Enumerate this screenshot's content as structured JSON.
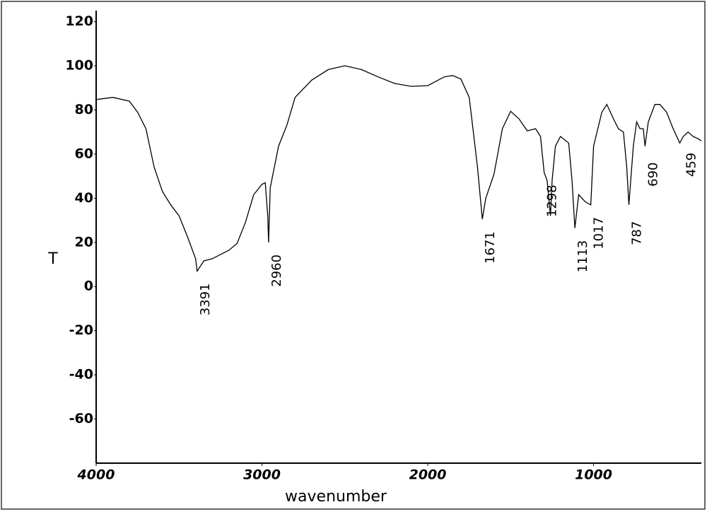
{
  "chart_data": {
    "type": "line",
    "x_label": "wavenumber",
    "y_label": "T",
    "xlim": [
      4000,
      350
    ],
    "ylim": [
      -80,
      125
    ],
    "xticks": [
      4000,
      3000,
      2000,
      1000
    ],
    "yticks": [
      120,
      100,
      80,
      60,
      40,
      20,
      0,
      -20,
      -40,
      -60
    ],
    "series": [
      {
        "color": "#000000",
        "x": [
          4000,
          3900,
          3800,
          3750,
          3700,
          3650,
          3600,
          3550,
          3500,
          3450,
          3400,
          3391,
          3350,
          3300,
          3200,
          3150,
          3100,
          3050,
          3000,
          2980,
          2965,
          2960,
          2950,
          2900,
          2850,
          2800,
          2700,
          2600,
          2500,
          2400,
          2300,
          2200,
          2100,
          2000,
          1900,
          1850,
          1800,
          1750,
          1700,
          1671,
          1650,
          1600,
          1550,
          1500,
          1450,
          1400,
          1350,
          1320,
          1298,
          1280,
          1260,
          1250,
          1230,
          1200,
          1150,
          1130,
          1113,
          1090,
          1050,
          1017,
          1000,
          950,
          920,
          880,
          850,
          820,
          800,
          787,
          760,
          740,
          720,
          700,
          690,
          670,
          630,
          600,
          560,
          520,
          480,
          459,
          430,
          400,
          370,
          350
        ],
        "values": [
          84.7,
          85.7,
          84,
          79,
          71.5,
          54,
          43,
          37,
          32,
          22.7,
          12.6,
          7,
          11.6,
          12.6,
          16.4,
          19.5,
          29,
          41.6,
          46.3,
          47,
          32,
          20,
          44.7,
          63.6,
          73,
          85.7,
          93.5,
          98.3,
          100,
          98.3,
          95,
          92,
          90.7,
          91,
          95,
          95.6,
          94,
          85.7,
          54,
          30.5,
          40,
          51,
          71.5,
          79.4,
          76,
          70.5,
          71.5,
          68,
          51.6,
          48,
          32,
          48,
          63.6,
          68,
          65,
          48,
          26.5,
          41.6,
          38.4,
          37,
          63.6,
          79,
          82.5,
          76,
          71.5,
          70,
          54,
          37,
          63.6,
          74.6,
          71.5,
          71.5,
          63.6,
          74.6,
          82.5,
          82.5,
          79,
          71.5,
          65,
          68,
          70,
          68,
          67,
          66
        ]
      }
    ],
    "peaks": [
      3391,
      2960,
      1671,
      1298,
      1113,
      1017,
      787,
      690,
      459
    ]
  }
}
